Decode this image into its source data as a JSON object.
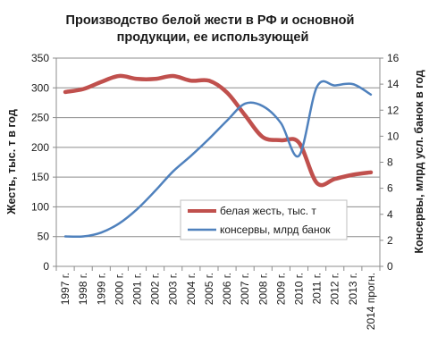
{
  "chart_data": {
    "type": "line",
    "title": "Производство белой жести в РФ и основной продукции, ее использующей",
    "title_lines": [
      "Производство  белой жести в РФ и основной",
      "продукции, ее использующей"
    ],
    "categories": [
      "1997 г.",
      "1998 г.",
      "1999 г.",
      "2000 г.",
      "2001 г.",
      "2002 г.",
      "2003 г.",
      "2004 г.",
      "2005 г.",
      "2006 г.",
      "2007 г.",
      "2008 г.",
      "2009 г.",
      "2010 г.",
      "2011 г.",
      "2012 г.",
      "2013 г.",
      "2014 прогн."
    ],
    "ylabel_left": "Жесть, тыс. т в год",
    "ylabel_right": "Консервы, млрд усл. банок в год",
    "ylim_left": [
      0,
      350
    ],
    "yticks_left": [
      "0",
      "50",
      "100",
      "150",
      "200",
      "250",
      "300",
      "350"
    ],
    "ylim_right": [
      0,
      16
    ],
    "yticks_right": [
      "0",
      "2",
      "4",
      "6",
      "8",
      "10",
      "12",
      "14",
      "16"
    ],
    "legend_position": "center-right",
    "series": [
      {
        "name": "белая жесть, тыс. т",
        "axis": "left",
        "color": "#c0504d",
        "values": [
          293,
          298,
          310,
          320,
          315,
          315,
          320,
          312,
          312,
          292,
          254,
          217,
          212,
          208,
          140,
          147,
          154,
          158
        ]
      },
      {
        "name": "консервы, млрд банок",
        "axis": "right",
        "color": "#4f81bd",
        "values": [
          2.3,
          2.3,
          2.6,
          3.3,
          4.4,
          5.8,
          7.3,
          8.5,
          9.8,
          11.2,
          12.5,
          12.3,
          11.0,
          8.5,
          13.8,
          13.9,
          14.0,
          13.2
        ]
      }
    ]
  }
}
